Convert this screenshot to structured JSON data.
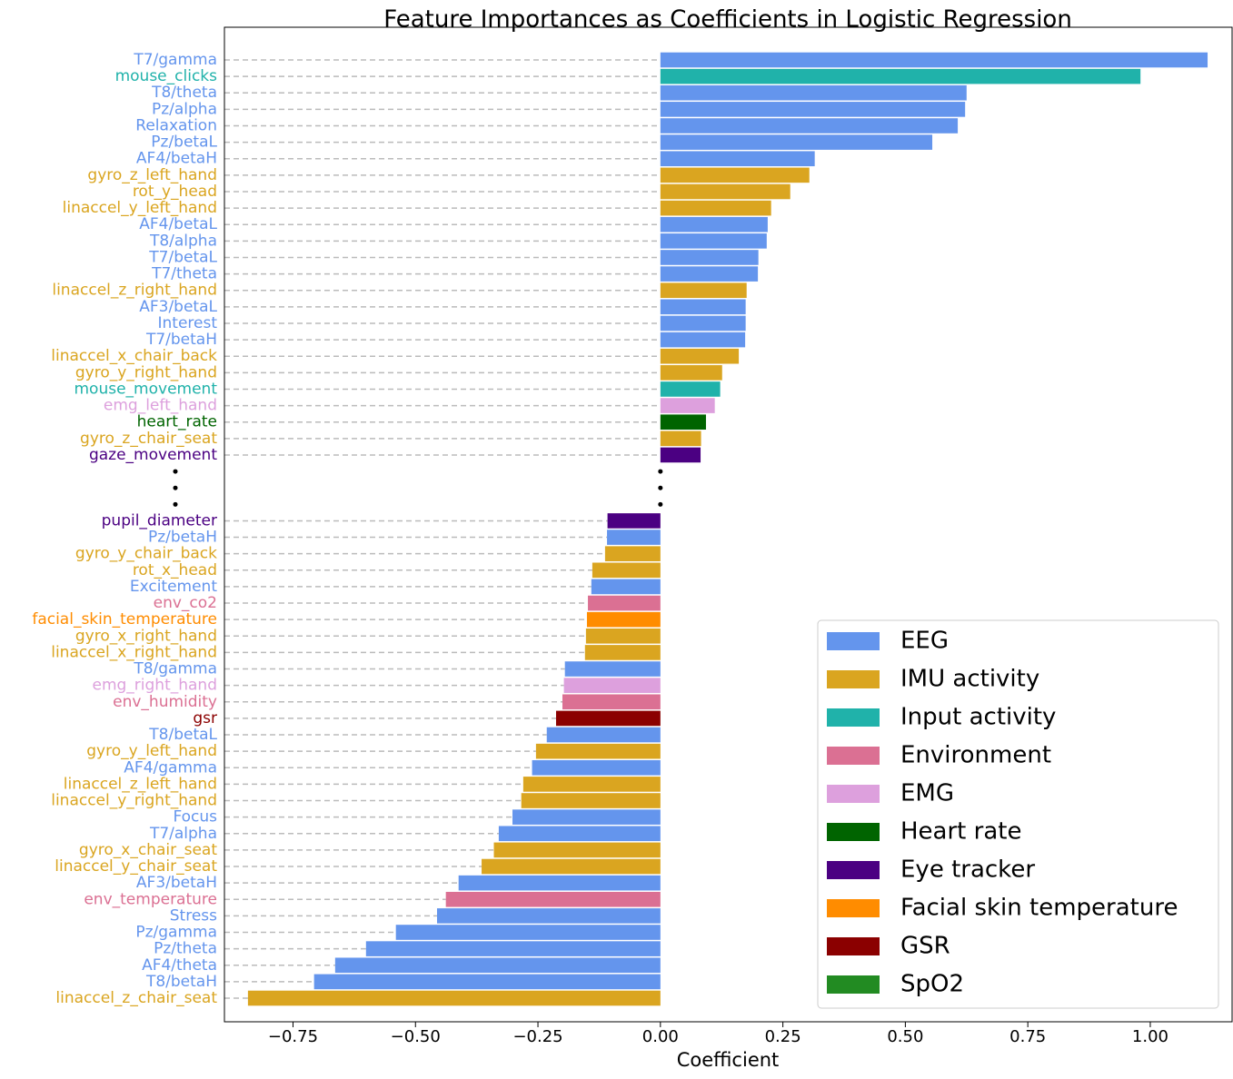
{
  "chart_data": {
    "type": "barh",
    "title": "Feature Importances as Coefficients in Logistic Regression",
    "xlabel": "Coefficient",
    "categories": [
      "T7/gamma",
      "mouse_clicks",
      "T8/theta",
      "Pz/alpha",
      "Relaxation",
      "Pz/betaL",
      "AF4/betaH",
      "gyro_z_left_hand",
      "rot_y_head",
      "linaccel_y_left_hand",
      "AF4/betaL",
      "T8/alpha",
      "T7/betaL",
      "T7/theta",
      "linaccel_z_right_hand",
      "AF3/betaL",
      "Interest",
      "T7/betaH",
      "linaccel_x_chair_back",
      "gyro_y_right_hand",
      "mouse_movement",
      "emg_left_hand",
      "heart_rate",
      "gyro_z_chair_seat",
      "gaze_movement",
      null,
      null,
      null,
      "pupil_diameter",
      "Pz/betaH",
      "gyro_y_chair_back",
      "rot_x_head",
      "Excitement",
      "env_co2",
      "facial_skin_temperature",
      "gyro_x_right_hand",
      "linaccel_x_right_hand",
      "T8/gamma",
      "emg_right_hand",
      "env_humidity",
      "gsr",
      "T8/betaL",
      "gyro_y_left_hand",
      "AF4/gamma",
      "linaccel_z_left_hand",
      "linaccel_y_right_hand",
      "Focus",
      "T7/alpha",
      "gyro_x_chair_seat",
      "linaccel_y_chair_seat",
      "AF3/betaH",
      "env_temperature",
      "Stress",
      "Pz/gamma",
      "Pz/theta",
      "AF4/theta",
      "T8/betaH",
      "linaccel_z_chair_seat"
    ],
    "values": [
      1.117,
      0.98,
      0.625,
      0.622,
      0.607,
      0.555,
      0.315,
      0.304,
      0.265,
      0.226,
      0.219,
      0.217,
      0.2,
      0.199,
      0.176,
      0.174,
      0.174,
      0.173,
      0.16,
      0.126,
      0.122,
      0.111,
      0.093,
      0.083,
      0.082,
      null,
      null,
      null,
      -0.108,
      -0.109,
      -0.113,
      -0.139,
      -0.141,
      -0.148,
      -0.15,
      -0.152,
      -0.154,
      -0.195,
      -0.197,
      -0.2,
      -0.213,
      -0.232,
      -0.254,
      -0.262,
      -0.28,
      -0.284,
      -0.302,
      -0.33,
      -0.34,
      -0.365,
      -0.412,
      -0.438,
      -0.456,
      -0.54,
      -0.601,
      -0.664,
      -0.707,
      -0.842
    ],
    "colors": [
      "#6495ED",
      "#20B2AA",
      "#6495ED",
      "#6495ED",
      "#6495ED",
      "#6495ED",
      "#6495ED",
      "#DAA520",
      "#DAA520",
      "#DAA520",
      "#6495ED",
      "#6495ED",
      "#6495ED",
      "#6495ED",
      "#DAA520",
      "#6495ED",
      "#6495ED",
      "#6495ED",
      "#DAA520",
      "#DAA520",
      "#20B2AA",
      "#DDA0DD",
      "#006400",
      "#DAA520",
      "#4B0082",
      null,
      null,
      null,
      "#4B0082",
      "#6495ED",
      "#DAA520",
      "#DAA520",
      "#6495ED",
      "#DB7093",
      "#FF8C00",
      "#DAA520",
      "#DAA520",
      "#6495ED",
      "#DDA0DD",
      "#DB7093",
      "#8B0000",
      "#6495ED",
      "#DAA520",
      "#6495ED",
      "#DAA520",
      "#DAA520",
      "#6495ED",
      "#6495ED",
      "#DAA520",
      "#DAA520",
      "#6495ED",
      "#DB7093",
      "#6495ED",
      "#6495ED",
      "#6495ED",
      "#6495ED",
      "#6495ED",
      "#DAA520"
    ],
    "legend_items": [
      {
        "name": "EEG",
        "color": "#6495ED"
      },
      {
        "name": "IMU activity",
        "color": "#DAA520"
      },
      {
        "name": "Input activity",
        "color": "#20B2AA"
      },
      {
        "name": "Environment",
        "color": "#DB7093"
      },
      {
        "name": "EMG",
        "color": "#DDA0DD"
      },
      {
        "name": "Heart rate",
        "color": "#006400"
      },
      {
        "name": "Eye tracker",
        "color": "#4B0082"
      },
      {
        "name": "Facial skin temperature",
        "color": "#FF8C00"
      },
      {
        "name": "GSR",
        "color": "#8B0000"
      },
      {
        "name": "SpO2",
        "color": "#228B22"
      }
    ],
    "legend": "lower right",
    "xlim": [
      -0.89,
      1.167
    ],
    "xticks": [
      {
        "value": -0.75,
        "label": "−0.75"
      },
      {
        "value": -0.5,
        "label": "−0.50"
      },
      {
        "value": -0.25,
        "label": "−0.25"
      },
      {
        "value": 0,
        "label": "0.00"
      },
      {
        "value": 0.25,
        "label": "0.25"
      },
      {
        "value": 0.5,
        "label": "0.50"
      },
      {
        "value": 0.75,
        "label": "0.75"
      },
      {
        "value": 1,
        "label": "1.00"
      }
    ]
  }
}
